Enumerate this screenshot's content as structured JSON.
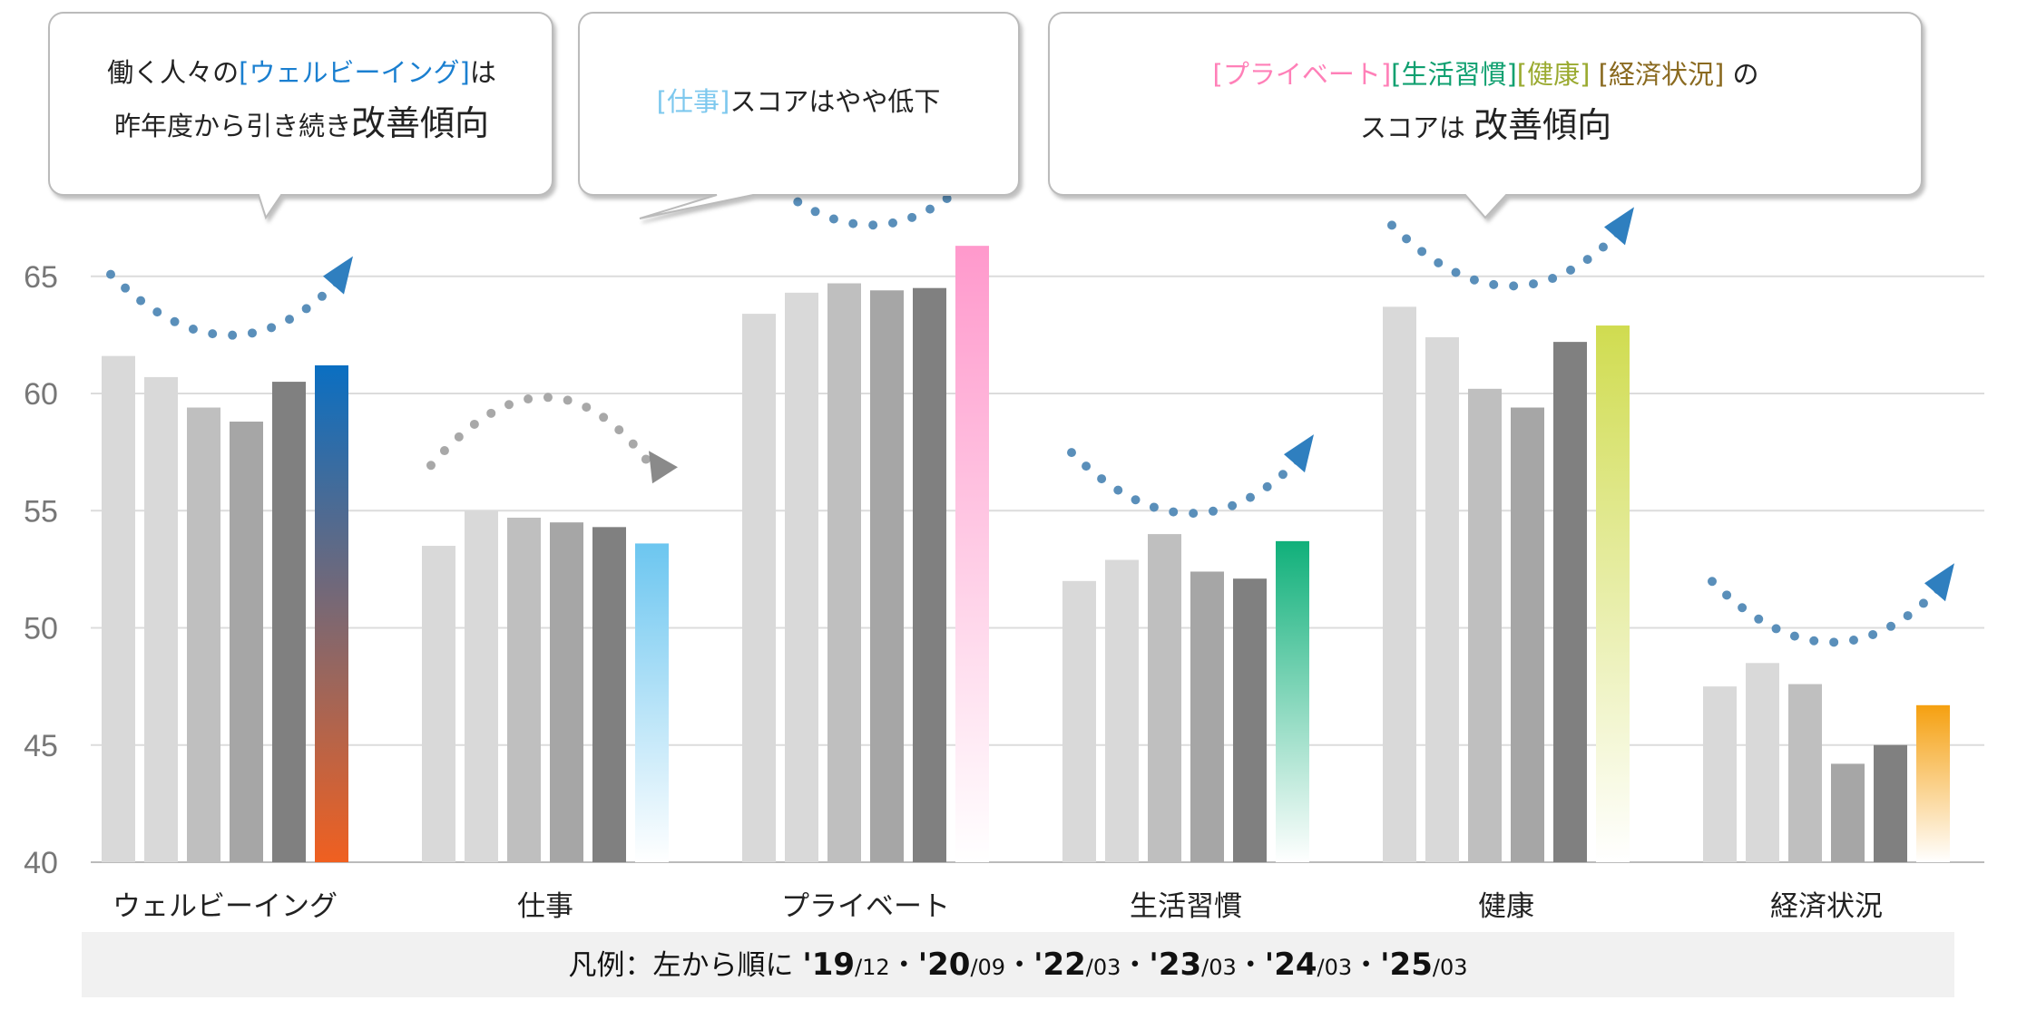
{
  "callouts": [
    {
      "line1_pre": "働く人々の",
      "line1_hl": "[ウェルビーイング]",
      "line1_post": "は",
      "line2_pre": "昨年度から引き続き",
      "line2_big": "改善傾向",
      "hl_color": "#1a7fd0"
    },
    {
      "hl": "[仕事]",
      "text": "スコアはやや低下",
      "hl_color": "#7dc8ee"
    },
    {
      "hl1": "[プライベート]",
      "hl2": "[生活習慣]",
      "hl3": "[健康]",
      "hl4": "[経済状況]",
      "post": " の",
      "line2_pre": "スコアは ",
      "line2_big": "改善傾向",
      "colors": [
        "#ff80b8",
        "#10a070",
        "#9aaa30",
        "#8a6a20"
      ]
    }
  ],
  "legend": {
    "prefix": "凡例：左から順に ",
    "items": [
      {
        "year": "'19",
        "month": "/12"
      },
      {
        "year": "'20",
        "month": "/09"
      },
      {
        "year": "'22",
        "month": "/03"
      },
      {
        "year": "'23",
        "month": "/03"
      },
      {
        "year": "'24",
        "month": "/03"
      },
      {
        "year": "'25",
        "month": "/03"
      }
    ],
    "separator": "・"
  },
  "chart_data": {
    "type": "bar",
    "categories": [
      "ウェルビーイング",
      "仕事",
      "プライベート",
      "生活習慣",
      "健康",
      "経済状況"
    ],
    "series": [
      {
        "name": "'19/12",
        "values": [
          61.6,
          53.5,
          63.4,
          52.0,
          63.7,
          47.5
        ],
        "color": "#d9d9d9"
      },
      {
        "name": "'20/09",
        "values": [
          60.7,
          55.0,
          64.3,
          52.9,
          62.4,
          48.5
        ],
        "color": "#d9d9d9"
      },
      {
        "name": "'22/03",
        "values": [
          59.4,
          54.7,
          64.7,
          54.0,
          60.2,
          47.6
        ],
        "color": "#bfbfbf"
      },
      {
        "name": "'23/03",
        "values": [
          58.8,
          54.5,
          64.4,
          52.4,
          59.4,
          44.2
        ],
        "color": "#a6a6a6"
      },
      {
        "name": "'24/03",
        "values": [
          60.5,
          54.3,
          64.5,
          52.1,
          62.2,
          45.0
        ],
        "color": "#808080"
      },
      {
        "name": "'25/03",
        "values": [
          61.2,
          53.6,
          66.3,
          53.7,
          62.9,
          46.7
        ]
      }
    ],
    "latest_colors": [
      [
        "#0a6fc2",
        "#f06020"
      ],
      [
        "#6cc6f0",
        "#ffffff"
      ],
      [
        "#ff99cc",
        "#ffffff"
      ],
      [
        "#10b07a",
        "#ffffff"
      ],
      [
        "#d0dc50",
        "#ffffff"
      ],
      [
        "#f5a010",
        "#ffffff"
      ]
    ],
    "trends": [
      "up",
      "down",
      "up",
      "up",
      "up",
      "up"
    ],
    "ylim": [
      40,
      66.5
    ],
    "yticks": [
      "40",
      "45",
      "50",
      "55",
      "60",
      "65"
    ],
    "grid": true
  }
}
